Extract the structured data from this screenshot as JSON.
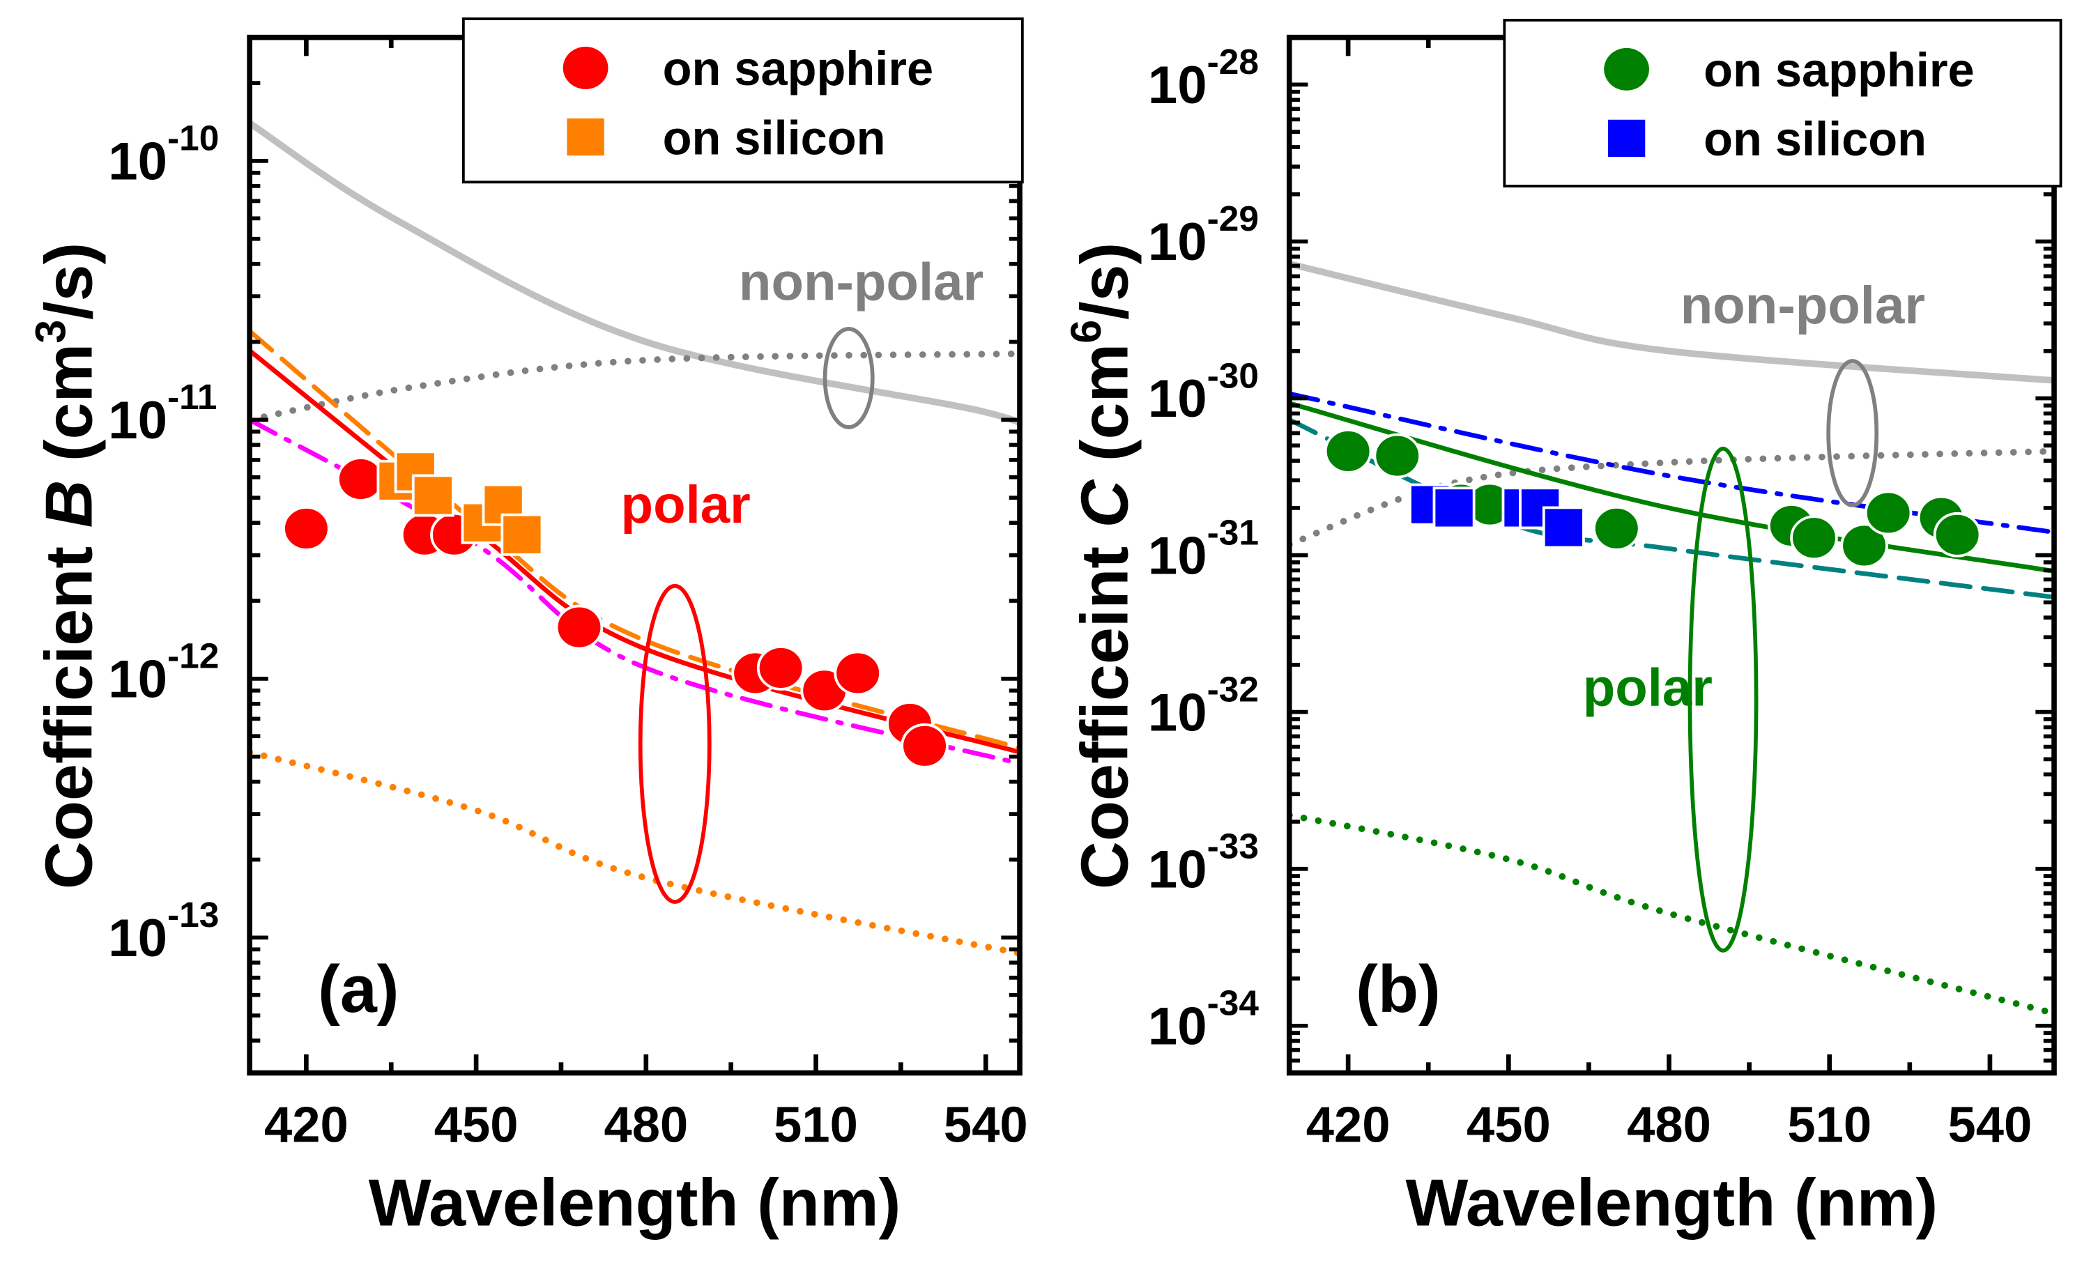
{
  "chart_data": [
    {
      "type": "scatter",
      "panel_label": "(a)",
      "xlabel": "Wavelength (nm)",
      "ylabel": {
        "prefix": "Coefficient",
        "symbol": "B",
        "unit_base": "(cm",
        "unit_exp": "3",
        "unit_suffix": "/s)"
      },
      "xlim": [
        410,
        546
      ],
      "ylim": [
        3e-14,
        3e-10
      ],
      "yscale": "log",
      "xticks": [
        420,
        450,
        480,
        510,
        540
      ],
      "xminor_step": 15,
      "yticks": [
        {
          "base": "10",
          "exp": "-10",
          "value": 1e-10
        },
        {
          "base": "10",
          "exp": "-11",
          "value": 1e-11
        },
        {
          "base": "10",
          "exp": "-12",
          "value": 1e-12
        },
        {
          "base": "10",
          "exp": "-13",
          "value": 1e-13
        }
      ],
      "legend": {
        "placement": "top-right",
        "entries": [
          {
            "label": "on sapphire",
            "marker": "circle",
            "color": "#ff0000"
          },
          {
            "label": "on silicon",
            "marker": "square",
            "color": "#ff8000"
          }
        ]
      },
      "series": [
        {
          "name": "on sapphire",
          "marker": "circle",
          "color": "#ff0000",
          "x": [
            420,
            429.6,
            440.9,
            446.1,
            468.2,
            499.3,
            503.8,
            511.5,
            517.4,
            526.6,
            529.2
          ],
          "y": [
            3.8e-12,
            5.9e-12,
            3.6e-12,
            3.6e-12,
            1.58e-12,
            1.05e-12,
            1.1e-12,
            9e-13,
            1.05e-12,
            6.7e-13,
            5.5e-13
          ]
        },
        {
          "name": "on silicon",
          "marker": "square",
          "color": "#ff8000",
          "x": [
            436.2,
            439.3,
            442.4,
            451.1,
            454.8,
            458.1
          ],
          "y": [
            5.8e-12,
            6.3e-12,
            5.1e-12,
            4e-12,
            4.7e-12,
            3.6e-12
          ]
        }
      ],
      "curves": [
        {
          "style": "solid",
          "color": "#c0c0c0",
          "x": [
            410,
            436,
            480,
            540,
            546
          ],
          "y": [
            1.4e-10,
            5.9e-11,
            2e-11,
            1.07e-11,
            8.9e-12
          ]
        },
        {
          "style": "dotted",
          "color": "#808080",
          "x": [
            410,
            440,
            480,
            546
          ],
          "y": [
            1e-11,
            1.35e-11,
            1.7e-11,
            1.8e-11
          ]
        },
        {
          "style": "solid",
          "color": "#ff0000",
          "x": [
            410,
            450,
            480,
            546
          ],
          "y": [
            1.85e-11,
            3.7e-12,
            1.3e-12,
            5.2e-13
          ]
        },
        {
          "style": "dashed",
          "color": "#ff8000",
          "x": [
            410,
            450,
            480,
            546
          ],
          "y": [
            2.2e-11,
            4e-12,
            1.4e-12,
            5.4e-13
          ]
        },
        {
          "style": "dashdot",
          "color": "#ff00ff",
          "x": [
            410,
            450,
            480,
            546
          ],
          "y": [
            1e-11,
            3.3e-12,
            1.1e-12,
            4.7e-13
          ]
        },
        {
          "style": "dotted",
          "color": "#ff8000",
          "x": [
            410,
            450,
            480,
            546
          ],
          "y": [
            5.2e-13,
            3.1e-13,
            1.7e-13,
            8.7e-14
          ]
        }
      ],
      "annotations": [
        {
          "text": "non-polar",
          "color": "#808080",
          "x": 518,
          "y": 2.9e-11
        },
        {
          "text": "polar",
          "color": "#ff0000",
          "x": 487,
          "y": 4e-12
        }
      ],
      "ellipses": [
        {
          "color": "#808080",
          "cx": 515.8,
          "cy": 1.45e-11,
          "x_halfwidth_nm": 4.2,
          "y_half_decades": 0.19
        },
        {
          "color": "#ff0000",
          "cx": 485.1,
          "cy": 5.6e-13,
          "x_halfwidth_nm": 6.1,
          "y_half_decades": 0.61
        }
      ]
    },
    {
      "type": "scatter",
      "panel_label": "(b)",
      "xlabel": "Wavelength (nm)",
      "ylabel": {
        "prefix": "Coefficeint",
        "symbol": "C",
        "unit_base": "(cm",
        "unit_exp": "6",
        "unit_suffix": "/s)"
      },
      "xlim": [
        409,
        552
      ],
      "ylim": [
        5e-35,
        2e-28
      ],
      "yscale": "log",
      "xticks": [
        420,
        450,
        480,
        510,
        540
      ],
      "xminor_step": 15,
      "yticks": [
        {
          "base": "10",
          "exp": "-28",
          "value": 1e-28
        },
        {
          "base": "10",
          "exp": "-29",
          "value": 1e-29
        },
        {
          "base": "10",
          "exp": "-30",
          "value": 1e-30
        },
        {
          "base": "10",
          "exp": "-31",
          "value": 1e-31
        },
        {
          "base": "10",
          "exp": "-32",
          "value": 1e-32
        },
        {
          "base": "10",
          "exp": "-33",
          "value": 1e-33
        },
        {
          "base": "10",
          "exp": "-34",
          "value": 1e-34
        }
      ],
      "legend": {
        "placement": "top-right",
        "entries": [
          {
            "label": "on sapphire",
            "marker": "circle",
            "color": "#008000"
          },
          {
            "label": "on silicon",
            "marker": "square",
            "color": "#0000ff"
          }
        ]
      },
      "series": [
        {
          "name": "on sapphire",
          "marker": "circle",
          "color": "#008000",
          "x": [
            420,
            429.2,
            441.1,
            446.5,
            470.2,
            502.9,
            507.1,
            516.5,
            521,
            530.9,
            533.9
          ],
          "y": [
            4.6e-31,
            4.3e-31,
            2.1e-31,
            2.1e-31,
            1.48e-31,
            1.54e-31,
            1.29e-31,
            1.15e-31,
            1.86e-31,
            1.73e-31,
            1.35e-31
          ]
        },
        {
          "name": "on silicon",
          "marker": "square",
          "color": "#0000ff",
          "x": [
            435.3,
            439.8,
            452.7,
            455.9,
            460.3
          ],
          "y": [
            2.1e-31,
            2e-31,
            2e-31,
            2e-31,
            1.5e-31
          ]
        }
      ],
      "curves": [
        {
          "style": "solid",
          "color": "#c0c0c0",
          "x": [
            409,
            450,
            480,
            552
          ],
          "y": [
            7.2e-30,
            3.3e-30,
            2e-30,
            1.3e-30
          ]
        },
        {
          "style": "dotted",
          "color": "#808080",
          "x": [
            409,
            440,
            480,
            552
          ],
          "y": [
            1.17e-31,
            2.9e-31,
            3.9e-31,
            4.6e-31
          ]
        },
        {
          "style": "dashdot",
          "color": "#0000ff",
          "x": [
            409,
            480,
            552
          ],
          "y": [
            1.07e-30,
            3.2e-31,
            1.4e-31
          ]
        },
        {
          "style": "solid",
          "color": "#008000",
          "x": [
            409,
            480,
            552
          ],
          "y": [
            9.3e-31,
            2e-31,
            7.9e-32
          ]
        },
        {
          "style": "dashed",
          "color": "#008080",
          "x": [
            409,
            450,
            480,
            552
          ],
          "y": [
            7.3e-31,
            1.6e-31,
            1.1e-31,
            5.4e-32
          ]
        },
        {
          "style": "dotted",
          "color": "#008000",
          "x": [
            409,
            450,
            480,
            552
          ],
          "y": [
            2.2e-33,
            1.15e-33,
            5.2e-34,
            1.2e-34
          ]
        }
      ],
      "annotations": [
        {
          "text": "non-polar",
          "color": "#808080",
          "x": 505,
          "y": 3e-30
        },
        {
          "text": "polar",
          "color": "#008000",
          "x": 476,
          "y": 1.1e-32
        }
      ],
      "ellipses": [
        {
          "color": "#808080",
          "cx": 514.3,
          "cy": 6e-31,
          "x_halfwidth_nm": 4.5,
          "y_half_decades": 0.46
        },
        {
          "color": "#008000",
          "cx": 490.1,
          "cy": 1.2e-32,
          "x_halfwidth_nm": 6.2,
          "y_half_decades": 1.6
        }
      ]
    }
  ]
}
